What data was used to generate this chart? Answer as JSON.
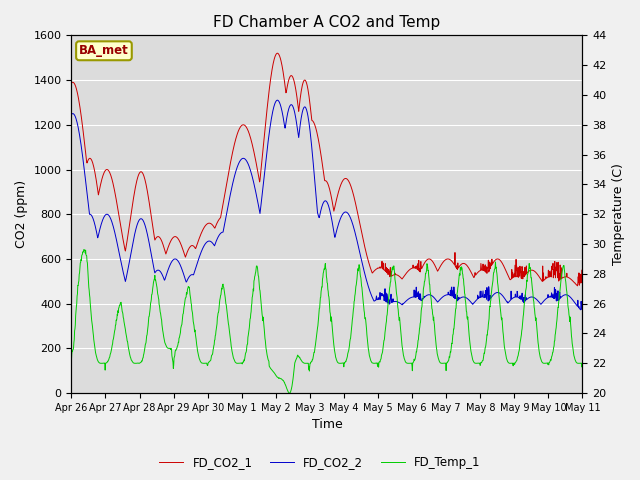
{
  "title": "FD Chamber A CO2 and Temp",
  "xlabel": "Time",
  "ylabel_left": "CO2 (ppm)",
  "ylabel_right": "Temperature (C)",
  "ylim_left": [
    0,
    1600
  ],
  "ylim_right": [
    20,
    44
  ],
  "yticks_left": [
    0,
    200,
    400,
    600,
    800,
    1000,
    1200,
    1400,
    1600
  ],
  "yticks_right": [
    20,
    22,
    24,
    26,
    28,
    30,
    32,
    34,
    36,
    38,
    40,
    42,
    44
  ],
  "xtick_labels": [
    "Apr 26",
    "Apr 27",
    "Apr 28",
    "Apr 29",
    "Apr 30",
    "May 1",
    "May 2",
    "May 3",
    "May 4",
    "May 5",
    "May 6",
    "May 7",
    "May 8",
    "May 9",
    "May 10",
    "May 11"
  ],
  "color_co2_1": "#cc0000",
  "color_co2_2": "#0000cc",
  "color_temp": "#00cc00",
  "legend_labels": [
    "FD_CO2_1",
    "FD_CO2_2",
    "FD_Temp_1"
  ],
  "annotation_text": "BA_met",
  "background_color": "#dcdcdc",
  "fig_background": "#f0f0f0",
  "title_fontsize": 11,
  "axis_label_fontsize": 9,
  "tick_fontsize": 8,
  "n_days": 15
}
